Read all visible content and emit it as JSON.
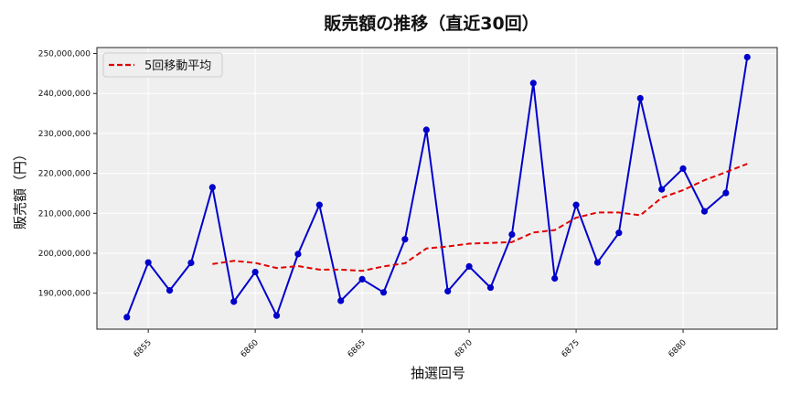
{
  "chart_data": {
    "type": "line",
    "title": "販売額の推移（直近30回）",
    "xlabel": "抽選回号",
    "ylabel": "販売額（円）",
    "x": [
      6854,
      6855,
      6856,
      6857,
      6858,
      6859,
      6860,
      6861,
      6862,
      6863,
      6864,
      6865,
      6866,
      6867,
      6868,
      6869,
      6870,
      6871,
      6872,
      6873,
      6874,
      6875,
      6876,
      6877,
      6878,
      6879,
      6880,
      6881,
      6882,
      6883
    ],
    "series": [
      {
        "name": "販売額",
        "color": "#0000cc",
        "style": "solid-with-markers",
        "show_in_legend": false,
        "values": [
          184000000,
          197700000,
          190700000,
          197600000,
          216500000,
          187900000,
          195300000,
          184400000,
          199800000,
          212100000,
          188100000,
          193500000,
          190200000,
          203500000,
          230900000,
          190500000,
          196700000,
          191400000,
          204700000,
          242600000,
          193700000,
          212100000,
          197700000,
          205100000,
          238800000,
          216000000,
          221200000,
          210500000,
          215100000,
          249100000
        ]
      },
      {
        "name": "5回移動平均",
        "color": "#e00000",
        "style": "dashed",
        "show_in_legend": true,
        "values": [
          null,
          null,
          null,
          null,
          197300000,
          198100000,
          197600000,
          196300000,
          196800000,
          195900000,
          195900000,
          195600000,
          196700000,
          197500000,
          201200000,
          201700000,
          202400000,
          202600000,
          202800000,
          205200000,
          205800000,
          208900000,
          210200000,
          210200000,
          209500000,
          213900000,
          215800000,
          218300000,
          220300000,
          222400000
        ]
      }
    ],
    "xticks": [
      6855,
      6860,
      6865,
      6870,
      6875,
      6880
    ],
    "xtick_labels": [
      "6855",
      "6860",
      "6865",
      "6870",
      "6875",
      "6880"
    ],
    "yticks": [
      190000000,
      200000000,
      210000000,
      220000000,
      230000000,
      240000000,
      250000000
    ],
    "ytick_labels": [
      "190,000,000",
      "200,000,000",
      "210,000,000",
      "220,000,000",
      "230,000,000",
      "240,000,000",
      "250,000,000"
    ],
    "xlim": [
      6852.6,
      6884.4
    ],
    "ylim": [
      181000000,
      251500000
    ],
    "grid": true,
    "legend_position": "upper left",
    "background": "#efefef"
  }
}
